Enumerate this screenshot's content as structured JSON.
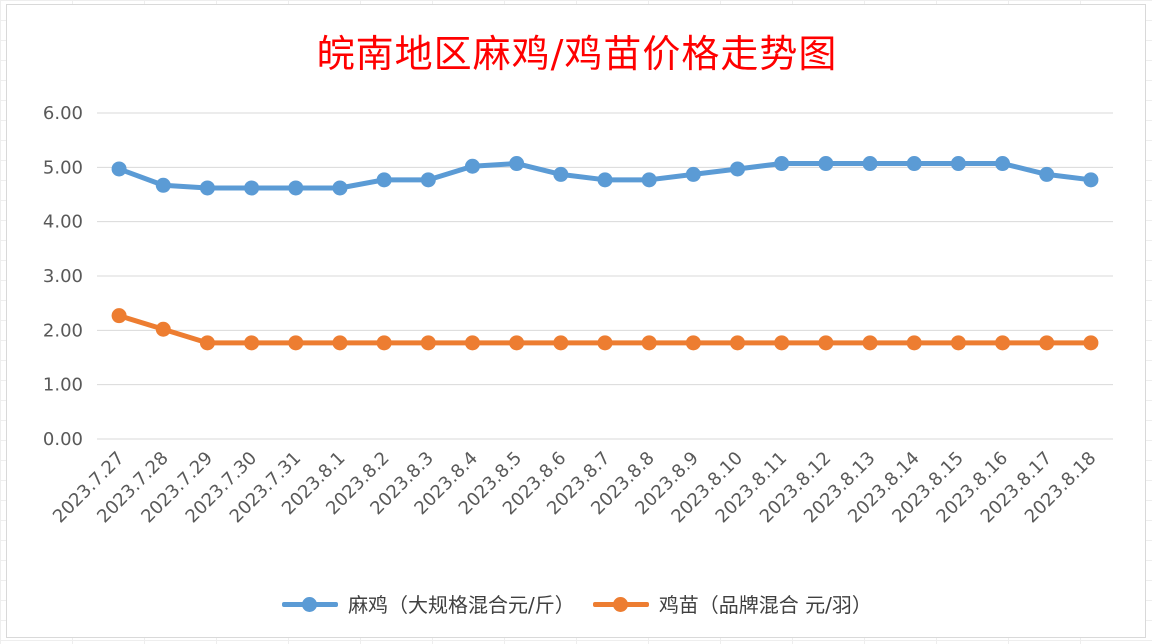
{
  "chart_data": {
    "type": "line",
    "title": "皖南地区麻鸡/鸡苗价格走势图",
    "categories": [
      "2023.7.27",
      "2023.7.28",
      "2023.7.29",
      "2023.7.30",
      "2023.7.31",
      "2023.8.1",
      "2023.8.2",
      "2023.8.3",
      "2023.8.4",
      "2023.8.5",
      "2023.8.6",
      "2023.8.7",
      "2023.8.8",
      "2023.8.9",
      "2023.8.10",
      "2023.8.11",
      "2023.8.12",
      "2023.8.13",
      "2023.8.14",
      "2023.8.15",
      "2023.8.16",
      "2023.8.17",
      "2023.8.18"
    ],
    "series": [
      {
        "name": "麻鸡（大规格混合元/斤）",
        "color": "#5b9bd5",
        "values": [
          4.97,
          4.67,
          4.62,
          4.62,
          4.62,
          4.62,
          4.77,
          4.77,
          5.02,
          5.07,
          4.87,
          4.77,
          4.77,
          4.87,
          4.97,
          5.07,
          5.07,
          5.07,
          5.07,
          5.07,
          5.07,
          4.87,
          4.77
        ]
      },
      {
        "name": "鸡苗（品牌混合 元/羽）",
        "color": "#ed7d31",
        "values": [
          2.27,
          2.02,
          1.77,
          1.77,
          1.77,
          1.77,
          1.77,
          1.77,
          1.77,
          1.77,
          1.77,
          1.77,
          1.77,
          1.77,
          1.77,
          1.77,
          1.77,
          1.77,
          1.77,
          1.77,
          1.77,
          1.77,
          1.77
        ]
      }
    ],
    "ylim": [
      0,
      6
    ],
    "yticks": [
      "0.00",
      "1.00",
      "2.00",
      "3.00",
      "4.00",
      "5.00",
      "6.00"
    ],
    "grid": true,
    "legend_position": "bottom"
  }
}
